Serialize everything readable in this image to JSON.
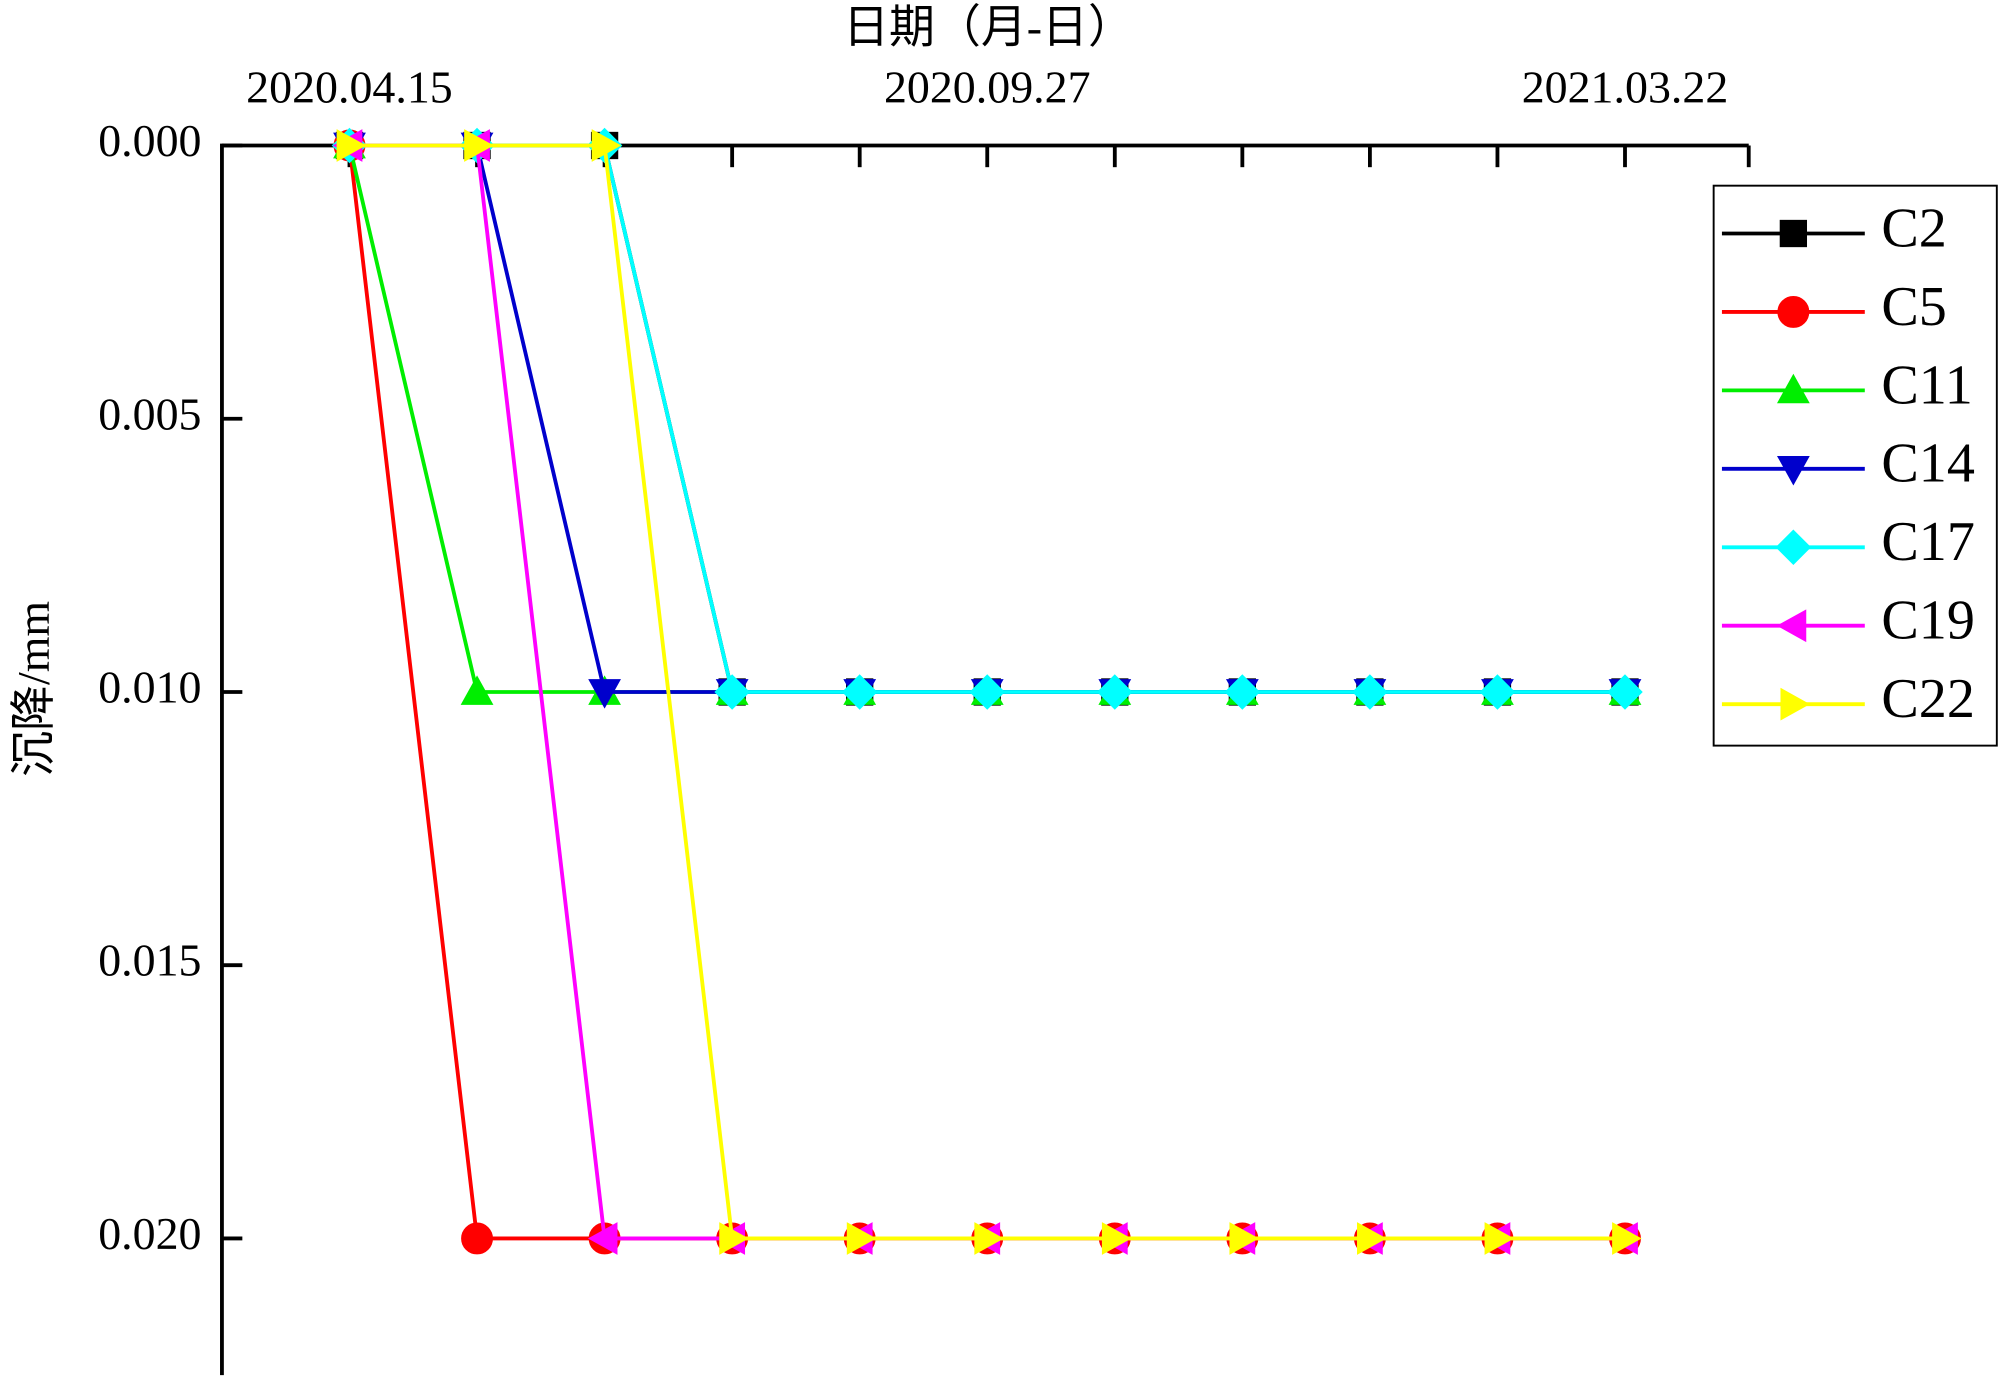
{
  "chart_data": {
    "type": "line",
    "x_label": "日期（月-日）",
    "y_label": "沉降/mm",
    "categories": [
      "2020.04.15",
      null,
      null,
      null,
      null,
      "2020.09.27",
      null,
      null,
      null,
      null,
      "2021.03.22"
    ],
    "ylim": [
      0,
      0.0225
    ],
    "y_inverted": true,
    "yticks": [
      {
        "value": 0,
        "label": "0.000"
      },
      {
        "value": 0.005,
        "label": "0.005"
      },
      {
        "value": 0.01,
        "label": "0.010"
      },
      {
        "value": 0.015,
        "label": "0.015"
      },
      {
        "value": 0.02,
        "label": "0.020"
      }
    ],
    "legend": "right",
    "series": [
      {
        "name": "C2",
        "color": "#000000",
        "marker": "square",
        "values": [
          0,
          0,
          0,
          0.01,
          0.01,
          0.01,
          0.01,
          0.01,
          0.01,
          0.01,
          0.01
        ]
      },
      {
        "name": "C5",
        "color": "#ff0000",
        "marker": "circle",
        "values": [
          0,
          0.02,
          0.02,
          0.02,
          0.02,
          0.02,
          0.02,
          0.02,
          0.02,
          0.02,
          0.02
        ]
      },
      {
        "name": "C11",
        "color": "#00ee00",
        "marker": "triangle-up",
        "values": [
          0,
          0.01,
          0.01,
          0.01,
          0.01,
          0.01,
          0.01,
          0.01,
          0.01,
          0.01,
          0.01
        ]
      },
      {
        "name": "C14",
        "color": "#0000cc",
        "marker": "triangle-down",
        "values": [
          0,
          0,
          0.01,
          0.01,
          0.01,
          0.01,
          0.01,
          0.01,
          0.01,
          0.01,
          0.01
        ]
      },
      {
        "name": "C17",
        "color": "#00ffff",
        "marker": "diamond",
        "values": [
          0,
          0,
          0,
          0.01,
          0.01,
          0.01,
          0.01,
          0.01,
          0.01,
          0.01,
          0.01
        ]
      },
      {
        "name": "C19",
        "color": "#ff00ff",
        "marker": "triangle-left",
        "values": [
          0,
          0,
          0.02,
          0.02,
          0.02,
          0.02,
          0.02,
          0.02,
          0.02,
          0.02,
          0.02
        ]
      },
      {
        "name": "C22",
        "color": "#ffff00",
        "marker": "triangle-right",
        "values": [
          0,
          0,
          0,
          0.02,
          0.02,
          0.02,
          0.02,
          0.02,
          0.02,
          0.02,
          0.02
        ]
      }
    ]
  }
}
